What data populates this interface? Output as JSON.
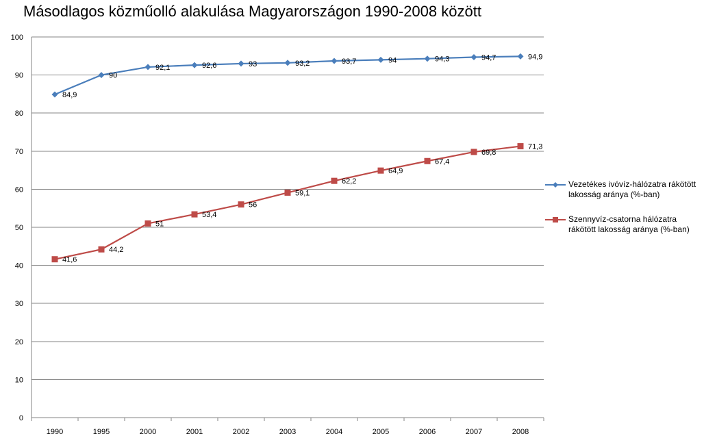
{
  "chart_data": {
    "type": "line",
    "title": "Másodlagos közműolló alakulása Magyarországon 1990-2008 között",
    "categories": [
      "1990",
      "1995",
      "2000",
      "2001",
      "2002",
      "2003",
      "2004",
      "2005",
      "2006",
      "2007",
      "2008"
    ],
    "ylim": [
      0,
      100
    ],
    "yticks": [
      0,
      10,
      20,
      30,
      40,
      50,
      60,
      70,
      80,
      90,
      100
    ],
    "grid": true,
    "legend_position": "right",
    "series": [
      {
        "name": "Vezetékes ivóvíz-hálózatra rákötött lakosság aránya (%-ban)",
        "color": "#4a7ebb",
        "marker": "diamond",
        "values": [
          84.9,
          90,
          92.1,
          92.6,
          93,
          93.2,
          93.7,
          94,
          94.3,
          94.7,
          94.9
        ],
        "labels": [
          "84,9",
          "90",
          "92,1",
          "92,6",
          "93",
          "93,2",
          "93,7",
          "94",
          "94,3",
          "94,7",
          "94,9"
        ]
      },
      {
        "name": "Szennyvíz-csatorna hálózatra rákötött lakosság aránya (%-ban)",
        "color": "#be4b48",
        "marker": "square",
        "values": [
          41.6,
          44.2,
          51,
          53.4,
          56,
          59.1,
          62.2,
          64.9,
          67.4,
          69.8,
          71.3
        ],
        "labels": [
          "41,6",
          "44,2",
          "51",
          "53,4",
          "56",
          "59,1",
          "62,2",
          "64,9",
          "67,4",
          "69,8",
          "71,3"
        ]
      }
    ]
  }
}
